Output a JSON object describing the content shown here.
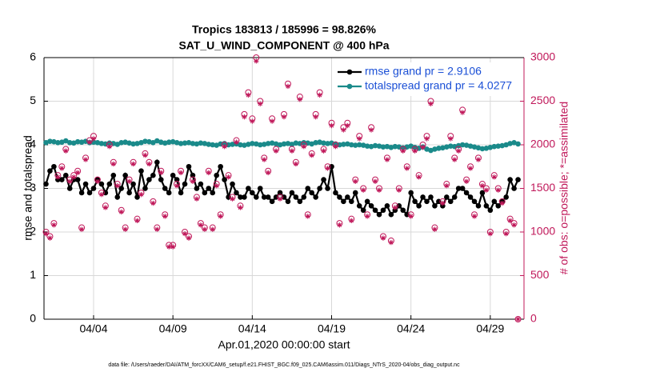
{
  "chart_data": {
    "type": "line",
    "title": "Tropics 183813 / 185996 = 98.826%",
    "subtitle": "SAT_U_WIND_COMPONENT @ 400 hPa",
    "xlabel": "Apr.01,2020 00:00:00 start",
    "ylabel": "rmse and totalspread",
    "y2label": "# of obs: o=possible; *=assimilated",
    "footnote": "data file: /Users/raeder/DAI/ATM_forcXX/CAM6_setup/f.e21.FHIST_BGC.f09_025.CAM6assim.011/Diags_NTrS_2020-04/obs_diag_output.nc",
    "xlim": [
      -0.125,
      30.125
    ],
    "xticks": [
      {
        "value": 3,
        "label": "04/04"
      },
      {
        "value": 8,
        "label": "04/09"
      },
      {
        "value": 13,
        "label": "04/14"
      },
      {
        "value": 18,
        "label": "04/19"
      },
      {
        "value": 23,
        "label": "04/24"
      },
      {
        "value": 28,
        "label": "04/29"
      }
    ],
    "ylim": [
      0,
      6
    ],
    "yticks": [
      0,
      1,
      2,
      3,
      4,
      5,
      6
    ],
    "y2lim": [
      0,
      3000
    ],
    "y2ticks": [
      0,
      500,
      1000,
      1500,
      2000,
      2500,
      3000
    ],
    "grid": true,
    "legend": "upper right",
    "x": [
      0,
      0.25,
      0.5,
      0.75,
      1,
      1.25,
      1.5,
      1.75,
      2,
      2.25,
      2.5,
      2.75,
      3,
      3.25,
      3.5,
      3.75,
      4,
      4.25,
      4.5,
      4.75,
      5,
      5.25,
      5.5,
      5.75,
      6,
      6.25,
      6.5,
      6.75,
      7,
      7.25,
      7.5,
      7.75,
      8,
      8.25,
      8.5,
      8.75,
      9,
      9.25,
      9.5,
      9.75,
      10,
      10.25,
      10.5,
      10.75,
      11,
      11.25,
      11.5,
      11.75,
      12,
      12.25,
      12.5,
      12.75,
      13,
      13.25,
      13.5,
      13.75,
      14,
      14.25,
      14.5,
      14.75,
      15,
      15.25,
      15.5,
      15.75,
      16,
      16.25,
      16.5,
      16.75,
      17,
      17.25,
      17.5,
      17.75,
      18,
      18.25,
      18.5,
      18.75,
      19,
      19.25,
      19.5,
      19.75,
      20,
      20.25,
      20.5,
      20.75,
      21,
      21.25,
      21.5,
      21.75,
      22,
      22.25,
      22.5,
      22.75,
      23,
      23.25,
      23.5,
      23.75,
      24,
      24.25,
      24.5,
      24.75,
      25,
      25.25,
      25.5,
      25.75,
      26,
      26.25,
      26.5,
      26.75,
      27,
      27.25,
      27.5,
      27.75,
      28,
      28.25,
      28.5,
      28.75,
      29,
      29.25,
      29.5,
      29.75
    ],
    "series": [
      {
        "name": "rmse grand pr = 2.9106",
        "color": "#000000",
        "marker": "line",
        "values": [
          3.1,
          3.4,
          3.5,
          3.2,
          3.2,
          3.3,
          3.0,
          3.2,
          3.2,
          2.9,
          3.1,
          2.9,
          3.0,
          3.2,
          3.1,
          2.9,
          3.1,
          3.3,
          2.8,
          3.0,
          3.3,
          2.9,
          3.1,
          2.8,
          3.4,
          3.0,
          3.2,
          3.3,
          3.6,
          3.2,
          3.0,
          2.9,
          3.3,
          3.2,
          2.9,
          3.1,
          3.5,
          3.3,
          3.0,
          3.1,
          2.9,
          3.0,
          2.9,
          3.3,
          3.5,
          3.2,
          2.8,
          3.1,
          2.9,
          2.8,
          2.8,
          3.0,
          2.9,
          2.8,
          3.0,
          2.8,
          2.8,
          2.7,
          2.8,
          2.9,
          2.8,
          2.7,
          2.9,
          2.8,
          2.7,
          2.8,
          3.0,
          2.9,
          2.8,
          3.0,
          3.2,
          3.0,
          3.5,
          2.9,
          2.8,
          2.7,
          2.8,
          2.7,
          2.9,
          2.6,
          2.5,
          2.7,
          2.6,
          2.5,
          2.4,
          2.5,
          2.6,
          2.4,
          2.5,
          2.6,
          2.5,
          2.4,
          2.9,
          2.7,
          2.6,
          2.8,
          2.7,
          2.8,
          2.6,
          2.7,
          2.6,
          2.8,
          2.7,
          2.8,
          3.0,
          3.0,
          2.9,
          2.8,
          2.7,
          2.6,
          2.9,
          2.6,
          2.5,
          2.7,
          2.6,
          2.7,
          2.8,
          3.2,
          3.0,
          3.2
        ]
      },
      {
        "name": "totalspread grand pr = 4.0277",
        "color": "#1a8a8a",
        "marker": "line",
        "values": [
          4.05,
          4.08,
          4.07,
          4.05,
          4.06,
          4.09,
          4.05,
          4.04,
          4.07,
          4.06,
          4.08,
          4.05,
          4.06,
          4.05,
          4.03,
          4.02,
          4.04,
          4.03,
          4.01,
          4.05,
          4.06,
          4.04,
          4.02,
          4.03,
          4.05,
          4.08,
          4.07,
          4.05,
          4.09,
          4.06,
          4.04,
          4.06,
          4.07,
          4.05,
          4.03,
          4.04,
          4.05,
          4.03,
          4.02,
          4.04,
          4.03,
          4.01,
          4.0,
          3.99,
          4.02,
          4.03,
          4.0,
          4.01,
          4.02,
          4.0,
          3.99,
          4.01,
          4.03,
          4.02,
          4.0,
          4.01,
          4.03,
          4.04,
          4.02,
          4.0,
          4.02,
          4.03,
          4.01,
          4.04,
          4.03,
          4.05,
          4.04,
          4.02,
          4.05,
          4.06,
          4.04,
          4.03,
          4.04,
          4.02,
          4.0,
          4.01,
          4.02,
          4.0,
          3.99,
          4.0,
          3.99,
          3.97,
          3.96,
          3.98,
          3.97,
          3.95,
          3.96,
          3.94,
          3.96,
          3.95,
          3.93,
          3.95,
          3.97,
          3.94,
          3.92,
          3.95,
          3.9,
          3.87,
          3.9,
          3.92,
          3.93,
          3.95,
          3.97,
          3.96,
          3.98,
          4.0,
          3.99,
          3.97,
          3.95,
          3.93,
          3.91,
          3.92,
          3.94,
          3.96,
          3.97,
          3.98,
          4.0,
          4.03,
          4.05,
          4.02
        ]
      },
      {
        "name": "possible",
        "color": "#c0185a",
        "marker": "circle",
        "axis": "y2",
        "values": [
          1000,
          950,
          1100,
          1650,
          1750,
          1950,
          1600,
          1650,
          1700,
          1050,
          1850,
          2050,
          2100,
          1600,
          1450,
          1300,
          2000,
          1800,
          1550,
          1250,
          1050,
          1600,
          1800,
          1150,
          1450,
          1900,
          1800,
          1350,
          1050,
          1700,
          1200,
          850,
          850,
          1550,
          1700,
          1000,
          950,
          1600,
          1400,
          1100,
          1050,
          1700,
          1050,
          1550,
          1200,
          2000,
          1650,
          1400,
          2050,
          1300,
          2350,
          2600,
          2300,
          3000,
          2500,
          1850,
          1700,
          2300,
          1950,
          1400,
          2350,
          2700,
          1950,
          1800,
          2550,
          2000,
          1200,
          1900,
          2350,
          2600,
          1950,
          1750,
          2250,
          2000,
          1100,
          2200,
          2250,
          1150,
          1600,
          2100,
          1500,
          1200,
          2200,
          1600,
          1500,
          950,
          1850,
          900,
          1300,
          1500,
          1950,
          1750,
          1200,
          1950,
          1650,
          2000,
          2100,
          2500,
          1050,
          2700,
          1350,
          1550,
          2100,
          1850,
          1950,
          2400,
          1600,
          1750,
          1200,
          1850,
          1550,
          1500,
          1000,
          1650,
          1500,
          1350,
          1000,
          1150,
          1100,
          0
        ]
      },
      {
        "name": "assimilated",
        "color": "#c0185a",
        "marker": "star",
        "axis": "y2",
        "values": [
          980,
          930,
          1080,
          1630,
          1730,
          1930,
          1580,
          1630,
          1680,
          1030,
          1830,
          2030,
          2070,
          1580,
          1430,
          1280,
          1980,
          1780,
          1530,
          1230,
          1030,
          1580,
          1780,
          1130,
          1430,
          1880,
          1780,
          1330,
          1030,
          1680,
          1180,
          830,
          830,
          1530,
          1680,
          980,
          930,
          1580,
          1380,
          1080,
          1030,
          1680,
          1030,
          1530,
          1180,
          1980,
          1630,
          1380,
          2030,
          1280,
          2320,
          2570,
          2270,
          2960,
          2470,
          1830,
          1680,
          2270,
          1930,
          1380,
          2320,
          2670,
          1930,
          1780,
          2520,
          1980,
          1180,
          1880,
          2320,
          2570,
          1930,
          1730,
          2220,
          1980,
          1080,
          2170,
          2220,
          1130,
          1580,
          2070,
          1480,
          1180,
          2170,
          1580,
          1480,
          930,
          1830,
          880,
          1280,
          1480,
          1930,
          1730,
          1180,
          1930,
          1630,
          1970,
          2070,
          2470,
          1030,
          2660,
          1330,
          1530,
          2070,
          1830,
          1930,
          2370,
          1580,
          1730,
          1180,
          1830,
          1530,
          1480,
          980,
          1630,
          1480,
          1330,
          980,
          1130,
          1080,
          0
        ]
      }
    ]
  }
}
